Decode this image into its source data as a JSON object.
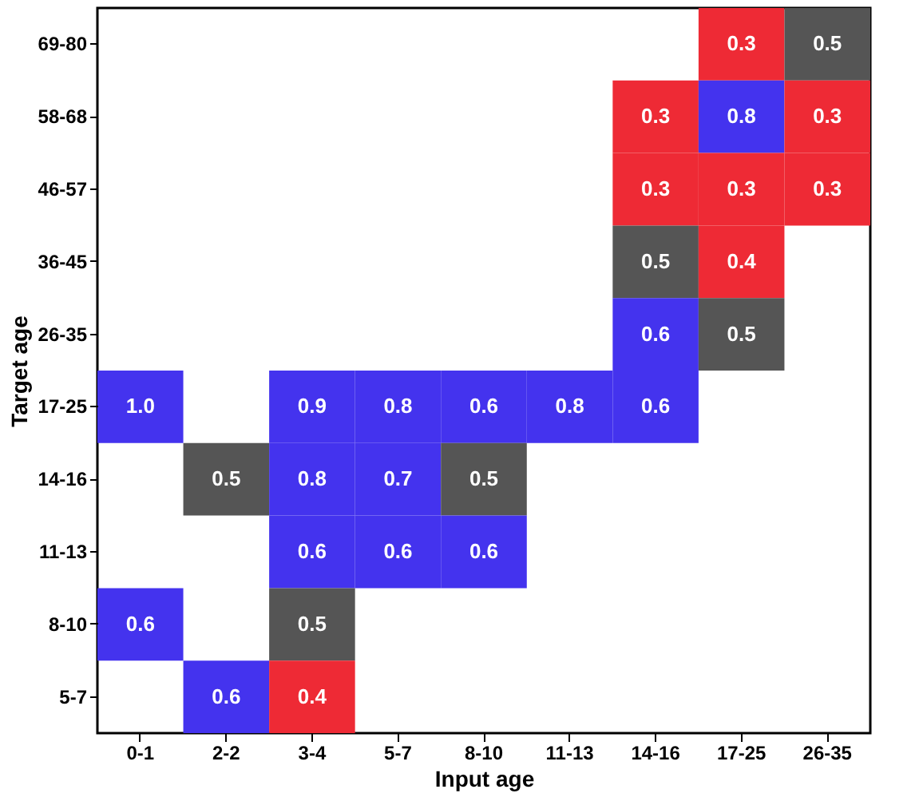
{
  "chart_data": {
    "type": "heatmap",
    "xlabel": "Input age",
    "ylabel": "Target age",
    "categories": [
      "0-1",
      "2-2",
      "3-4",
      "5-7",
      "8-10",
      "11-13",
      "14-16",
      "17-25",
      "26-35"
    ],
    "y_categories": [
      "69-80",
      "58-68",
      "46-57",
      "36-45",
      "26-35",
      "17-25",
      "14-16",
      "11-13",
      "8-10",
      "5-7"
    ],
    "cells": [
      [
        null,
        null,
        null,
        null,
        null,
        null,
        null,
        0.3,
        0.5
      ],
      [
        null,
        null,
        null,
        null,
        null,
        null,
        0.3,
        0.8,
        0.3
      ],
      [
        null,
        null,
        null,
        null,
        null,
        null,
        0.3,
        0.3,
        0.3
      ],
      [
        null,
        null,
        null,
        null,
        null,
        null,
        0.5,
        0.4,
        null
      ],
      [
        null,
        null,
        null,
        null,
        null,
        null,
        0.6,
        0.5,
        null
      ],
      [
        1.0,
        null,
        0.9,
        0.8,
        0.6,
        0.8,
        0.6,
        null,
        null
      ],
      [
        null,
        0.5,
        0.8,
        0.7,
        0.5,
        null,
        null,
        null,
        null
      ],
      [
        null,
        null,
        0.6,
        0.6,
        0.6,
        null,
        null,
        null,
        null
      ],
      [
        0.6,
        null,
        0.5,
        null,
        null,
        null,
        null,
        null,
        null
      ],
      [
        null,
        0.6,
        0.4,
        null,
        null,
        null,
        null,
        null,
        null
      ]
    ],
    "colors": [
      [
        null,
        null,
        null,
        null,
        null,
        null,
        null,
        "#ee2a35",
        "#555555"
      ],
      [
        null,
        null,
        null,
        null,
        null,
        null,
        "#ee2a35",
        "#4433ee",
        "#ee2a35"
      ],
      [
        null,
        null,
        null,
        null,
        null,
        null,
        "#ee2a35",
        "#ee2a35",
        "#ee2a35"
      ],
      [
        null,
        null,
        null,
        null,
        null,
        null,
        "#555555",
        "#ee2a35",
        null
      ],
      [
        null,
        null,
        null,
        null,
        null,
        null,
        "#4433ee",
        "#555555",
        null
      ],
      [
        "#4433ee",
        null,
        "#4433ee",
        "#4433ee",
        "#4433ee",
        "#4433ee",
        "#4433ee",
        null,
        null
      ],
      [
        null,
        "#555555",
        "#4433ee",
        "#4433ee",
        "#555555",
        null,
        null,
        null,
        null
      ],
      [
        null,
        null,
        "#4433ee",
        "#4433ee",
        "#4433ee",
        null,
        null,
        null,
        null
      ],
      [
        "#4433ee",
        null,
        "#555555",
        null,
        null,
        null,
        null,
        null,
        null
      ],
      [
        null,
        "#4433ee",
        "#ee2a35",
        null,
        null,
        null,
        null,
        null,
        null
      ]
    ],
    "cell_labels": [
      [
        null,
        null,
        null,
        null,
        null,
        null,
        null,
        "0.3",
        "0.5"
      ],
      [
        null,
        null,
        null,
        null,
        null,
        null,
        "0.3",
        "0.8",
        "0.3"
      ],
      [
        null,
        null,
        null,
        null,
        null,
        null,
        "0.3",
        "0.3",
        "0.3"
      ],
      [
        null,
        null,
        null,
        null,
        null,
        null,
        "0.5",
        "0.4",
        null
      ],
      [
        null,
        null,
        null,
        null,
        null,
        null,
        "0.6",
        "0.5",
        null
      ],
      [
        "1.0",
        null,
        "0.9",
        "0.8",
        "0.6",
        "0.8",
        "0.6",
        null,
        null
      ],
      [
        null,
        "0.5",
        "0.8",
        "0.7",
        "0.5",
        null,
        null,
        null,
        null
      ],
      [
        null,
        null,
        "0.6",
        "0.6",
        "0.6",
        null,
        null,
        null,
        null
      ],
      [
        "0.6",
        null,
        "0.5",
        null,
        null,
        null,
        null,
        null,
        null
      ],
      [
        null,
        "0.6",
        "0.4",
        null,
        null,
        null,
        null,
        null,
        null
      ]
    ],
    "data_labels": true
  }
}
